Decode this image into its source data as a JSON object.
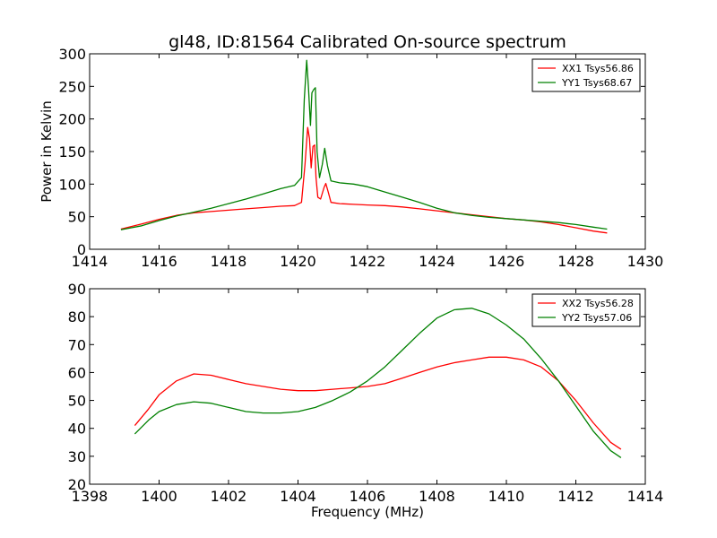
{
  "chart_data": [
    {
      "type": "line",
      "title": "gl48, ID:81564 Calibrated On-source spectrum",
      "xlabel": "",
      "ylabel": "Power in Kelvin",
      "xlim": [
        1414,
        1430
      ],
      "ylim": [
        0,
        300
      ],
      "xticks": [
        "1414",
        "1416",
        "1418",
        "1420",
        "1422",
        "1424",
        "1426",
        "1428",
        "1430"
      ],
      "yticks": [
        "0",
        "50",
        "100",
        "150",
        "200",
        "250",
        "300"
      ],
      "grid": false,
      "legend_position": "top-right",
      "series": [
        {
          "name": "XX1 Tsys56.86",
          "color": "#ff0000",
          "x": [
            1414.9,
            1415.5,
            1416,
            1416.5,
            1417,
            1417.5,
            1418,
            1418.5,
            1419,
            1419.5,
            1419.9,
            1420.1,
            1420.2,
            1420.28,
            1420.33,
            1420.38,
            1420.43,
            1420.48,
            1420.52,
            1420.57,
            1420.65,
            1420.75,
            1420.8,
            1420.87,
            1420.95,
            1421.2,
            1421.6,
            1422,
            1422.5,
            1423,
            1423.5,
            1424,
            1424.5,
            1425,
            1425.5,
            1426,
            1426.5,
            1427,
            1427.5,
            1428,
            1428.5,
            1428.9
          ],
          "y": [
            31,
            39,
            46,
            52,
            56,
            58,
            60,
            62,
            64,
            66,
            67,
            72,
            130,
            187,
            170,
            125,
            158,
            160,
            110,
            80,
            77,
            95,
            101,
            88,
            72,
            70,
            69,
            68,
            67,
            65,
            62,
            59,
            56,
            53,
            50,
            47,
            45,
            42,
            38,
            33,
            28,
            25
          ]
        },
        {
          "name": "YY1 Tsys68.67",
          "color": "#008000",
          "x": [
            1414.9,
            1415.5,
            1416,
            1416.5,
            1417,
            1417.5,
            1418,
            1418.5,
            1419,
            1419.5,
            1419.9,
            1420.1,
            1420.18,
            1420.25,
            1420.3,
            1420.36,
            1420.4,
            1420.45,
            1420.5,
            1420.55,
            1420.62,
            1420.7,
            1420.77,
            1420.85,
            1420.95,
            1421.2,
            1421.6,
            1422,
            1422.5,
            1423,
            1423.5,
            1424,
            1424.5,
            1425,
            1425.5,
            1426,
            1426.5,
            1427,
            1427.5,
            1428,
            1428.5,
            1428.9
          ],
          "y": [
            30,
            36,
            44,
            51,
            57,
            63,
            70,
            77,
            85,
            93,
            98,
            110,
            230,
            290,
            250,
            190,
            240,
            245,
            248,
            150,
            110,
            130,
            155,
            128,
            105,
            102,
            100,
            96,
            88,
            80,
            72,
            63,
            56,
            52,
            49,
            47,
            45,
            43,
            41,
            38,
            34,
            31
          ]
        }
      ]
    },
    {
      "type": "line",
      "title": "",
      "xlabel": "Frequency (MHz)",
      "ylabel": "",
      "xlim": [
        1398,
        1414
      ],
      "ylim": [
        20,
        90
      ],
      "xticks": [
        "1398",
        "1400",
        "1402",
        "1404",
        "1406",
        "1408",
        "1410",
        "1412",
        "1414"
      ],
      "yticks": [
        "20",
        "30",
        "40",
        "50",
        "60",
        "70",
        "80",
        "90"
      ],
      "grid": false,
      "legend_position": "top-right",
      "series": [
        {
          "name": "XX2 Tsys56.28",
          "color": "#ff0000",
          "x": [
            1399.3,
            1399.7,
            1400,
            1400.5,
            1401,
            1401.5,
            1402,
            1402.5,
            1403,
            1403.5,
            1404,
            1404.5,
            1405,
            1405.5,
            1406,
            1406.5,
            1407,
            1407.5,
            1408,
            1408.5,
            1409,
            1409.5,
            1410,
            1410.5,
            1411,
            1411.5,
            1412,
            1412.5,
            1413,
            1413.3
          ],
          "y": [
            41,
            47,
            52,
            57,
            59.5,
            59,
            57.5,
            56,
            55,
            54,
            53.5,
            53.5,
            54,
            54.5,
            55,
            56,
            58,
            60,
            62,
            63.5,
            64.5,
            65.5,
            65.5,
            64.5,
            62,
            57,
            50,
            42,
            35,
            32.5
          ]
        },
        {
          "name": "YY2 Tsys57.06",
          "color": "#008000",
          "x": [
            1399.3,
            1399.7,
            1400,
            1400.5,
            1401,
            1401.5,
            1402,
            1402.5,
            1403,
            1403.5,
            1404,
            1404.5,
            1405,
            1405.5,
            1406,
            1406.5,
            1407,
            1407.5,
            1408,
            1408.5,
            1409,
            1409.5,
            1410,
            1410.5,
            1411,
            1411.5,
            1412,
            1412.5,
            1413,
            1413.3
          ],
          "y": [
            38,
            43,
            46,
            48.5,
            49.5,
            49,
            47.5,
            46,
            45.5,
            45.5,
            46,
            47.5,
            50,
            53,
            57,
            62,
            68,
            74,
            79.5,
            82.5,
            83,
            81,
            77,
            72,
            65,
            57,
            48,
            39,
            32,
            29.5
          ]
        }
      ]
    }
  ]
}
